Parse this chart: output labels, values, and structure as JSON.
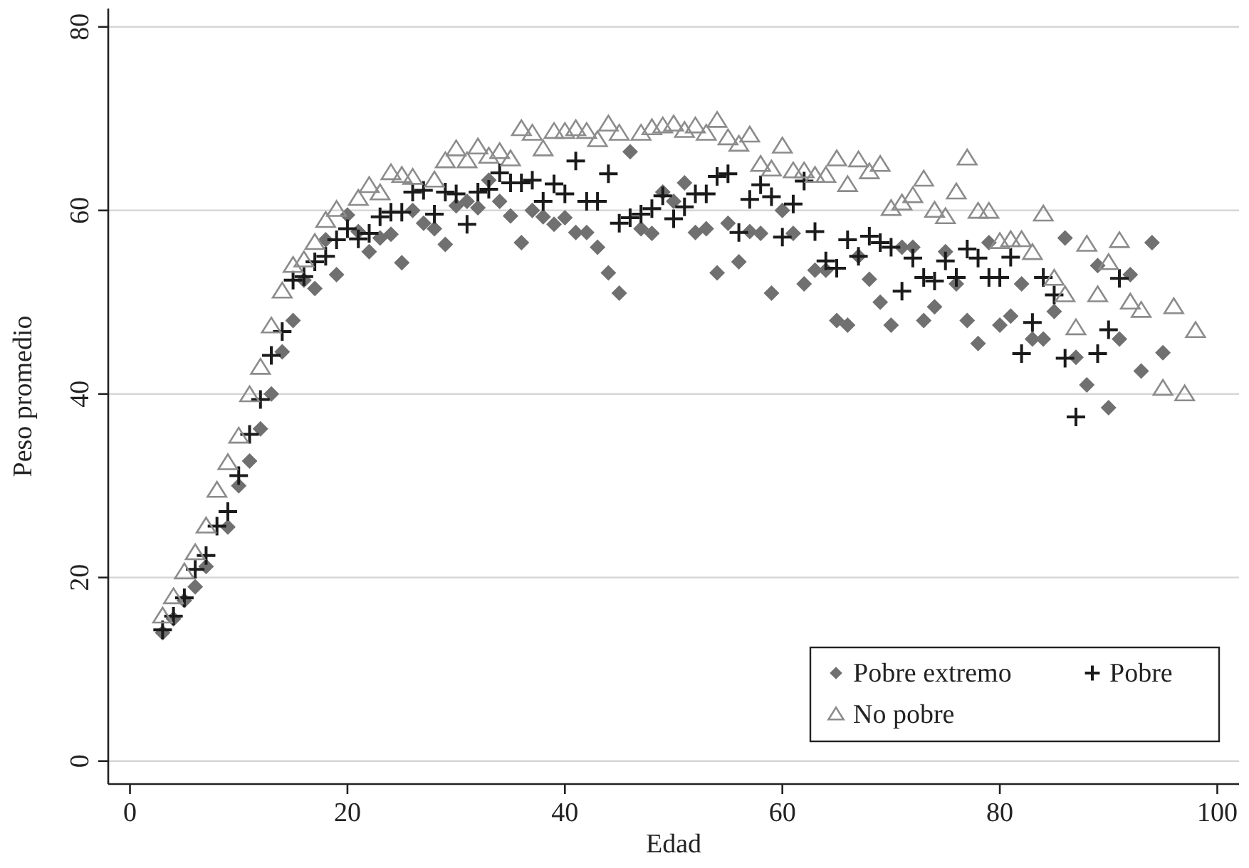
{
  "chart_data": {
    "type": "scatter",
    "xlabel": "Edad",
    "ylabel": "Peso promedio",
    "xlim": [
      -2,
      102
    ],
    "ylim": [
      -2.5,
      82
    ],
    "xticks": [
      0,
      20,
      40,
      60,
      80,
      100
    ],
    "yticks": [
      0,
      20,
      40,
      60,
      80
    ],
    "grid": "y",
    "legend": "bottom right",
    "series": [
      {
        "name": "Pobre extremo",
        "color": "#707070",
        "marker": "diamond",
        "x": [
          3,
          4,
          5,
          6,
          7,
          9,
          10,
          11,
          12,
          13,
          14,
          15,
          16,
          17,
          18,
          19,
          20,
          21,
          22,
          23,
          24,
          25,
          26,
          27,
          28,
          29,
          30,
          31,
          32,
          33,
          34,
          35,
          36,
          37,
          38,
          39,
          40,
          41,
          42,
          43,
          44,
          45,
          46,
          47,
          48,
          49,
          50,
          51,
          52,
          53,
          54,
          55,
          56,
          57,
          58,
          59,
          60,
          61,
          62,
          63,
          64,
          65,
          66,
          67,
          68,
          69,
          70,
          71,
          72,
          73,
          74,
          75,
          76,
          77,
          78,
          79,
          80,
          81,
          82,
          83,
          84,
          85,
          86,
          87,
          88,
          89,
          90,
          91,
          92,
          93,
          94,
          95
        ],
        "values": [
          14,
          15.5,
          17.5,
          19,
          21.2,
          25.5,
          30,
          32.7,
          36.2,
          40,
          44.6,
          48,
          52.4,
          51.5,
          56.8,
          53,
          59.5,
          57.7,
          55.5,
          57,
          57.4,
          54.3,
          60,
          58.6,
          58,
          56.3,
          60.5,
          61,
          60.3,
          63.3,
          61,
          59.4,
          56.5,
          60,
          59.3,
          58.5,
          59.2,
          57.6,
          57.6,
          56,
          53.2,
          51,
          66.4,
          58,
          57.5,
          62,
          61,
          63,
          57.6,
          58,
          53.2,
          58.6,
          54.4,
          57.7,
          57.5,
          51,
          60,
          57.5,
          52,
          53.5,
          53.5,
          48,
          47.5,
          55,
          52.5,
          50,
          47.5,
          56,
          56,
          48,
          49.5,
          55.5,
          52,
          48,
          45.5,
          56.5,
          47.5,
          48.5,
          52,
          46,
          46,
          49,
          57,
          44,
          41,
          54,
          38.5,
          46,
          53,
          42.5,
          56.5,
          44.5
        ]
      },
      {
        "name": "Pobre",
        "color": "#1a1a1a",
        "marker": "cross",
        "x": [
          3,
          4,
          5,
          6,
          7,
          8,
          9,
          10,
          11,
          12,
          13,
          14,
          15,
          16,
          17,
          18,
          19,
          20,
          21,
          22,
          23,
          24,
          25,
          26,
          27,
          28,
          29,
          30,
          31,
          32,
          33,
          34,
          35,
          36,
          37,
          38,
          39,
          40,
          41,
          42,
          43,
          44,
          45,
          46,
          47,
          48,
          49,
          50,
          51,
          52,
          53,
          54,
          55,
          56,
          57,
          58,
          59,
          60,
          61,
          62,
          63,
          64,
          65,
          66,
          67,
          68,
          69,
          70,
          71,
          72,
          73,
          74,
          75,
          76,
          77,
          78,
          79,
          80,
          81,
          82,
          83,
          84,
          85,
          86,
          87,
          89,
          90,
          91
        ],
        "values": [
          14.3,
          15.8,
          17.8,
          20.9,
          22.4,
          25.6,
          27.2,
          31.1,
          35.6,
          39.4,
          44.2,
          46.8,
          52.4,
          52.8,
          54.4,
          55,
          56.8,
          58,
          56.9,
          57.5,
          59.3,
          59.8,
          59.8,
          62,
          62.2,
          59.6,
          62,
          61.8,
          58.5,
          62,
          62.3,
          64.1,
          63,
          63,
          63.3,
          61,
          62.9,
          61.8,
          65.4,
          61,
          61,
          64,
          58.6,
          59.2,
          59.6,
          60.2,
          61.6,
          59.1,
          60.4,
          61.8,
          61.8,
          63.7,
          64,
          57.6,
          61.2,
          62.8,
          61.5,
          57.1,
          60.7,
          63.2,
          57.7,
          54.5,
          53.7,
          56.8,
          55,
          57.2,
          56.5,
          56,
          51.2,
          54.8,
          52.7,
          52.3,
          54.5,
          52.7,
          55.8,
          54.8,
          52.7,
          52.7,
          54.9,
          44.4,
          47.8,
          52.7,
          50.8,
          43.9,
          37.5,
          44.4,
          47,
          52.6
        ]
      },
      {
        "name": "No pobre",
        "color": "#8c8c8c",
        "marker": "triangle",
        "x": [
          3,
          4,
          5,
          6,
          7,
          8,
          9,
          10,
          11,
          12,
          13,
          14,
          15,
          16,
          17,
          18,
          19,
          21,
          22,
          23,
          24,
          25,
          26,
          28,
          29,
          30,
          31,
          32,
          33,
          34,
          35,
          36,
          37,
          38,
          39,
          40,
          41,
          42,
          43,
          44,
          45,
          47,
          48,
          49,
          50,
          51,
          52,
          53,
          54,
          55,
          56,
          57,
          58,
          59,
          60,
          61,
          62,
          63,
          64,
          65,
          66,
          67,
          68,
          69,
          70,
          71,
          72,
          73,
          74,
          75,
          76,
          77,
          78,
          79,
          80,
          81,
          82,
          83,
          84,
          85,
          86,
          87,
          88,
          89,
          90,
          91,
          92,
          93,
          95,
          96,
          97,
          98
        ],
        "values": [
          15.8,
          17.9,
          20.6,
          22.7,
          25.6,
          29.5,
          32.5,
          35.4,
          39.9,
          42.9,
          47.4,
          51.2,
          54,
          54.6,
          56.5,
          58.9,
          60.1,
          61.3,
          62.7,
          61.9,
          64.1,
          63.8,
          63.6,
          63.3,
          65.4,
          66.7,
          65.4,
          66.9,
          65.9,
          66.4,
          65.6,
          68.9,
          68.4,
          66.7,
          68.6,
          68.6,
          68.9,
          68.6,
          67.7,
          69.4,
          68.4,
          68.4,
          69,
          69.2,
          69.4,
          68.7,
          69.2,
          68.4,
          69.8,
          67.9,
          67.2,
          68.2,
          65,
          64.5,
          67,
          64.3,
          64.3,
          63.8,
          63.8,
          65.6,
          62.8,
          65.5,
          64.2,
          65,
          60.2,
          60.8,
          61.6,
          63.4,
          60,
          59.3,
          62,
          65.7,
          59.9,
          59.9,
          56.6,
          56.8,
          56.8,
          55.4,
          59.6,
          52.6,
          50.8,
          47.2,
          56.3,
          50.8,
          54.3,
          56.7,
          50,
          49.1,
          40.6,
          49.5,
          40,
          46.9
        ]
      }
    ]
  }
}
